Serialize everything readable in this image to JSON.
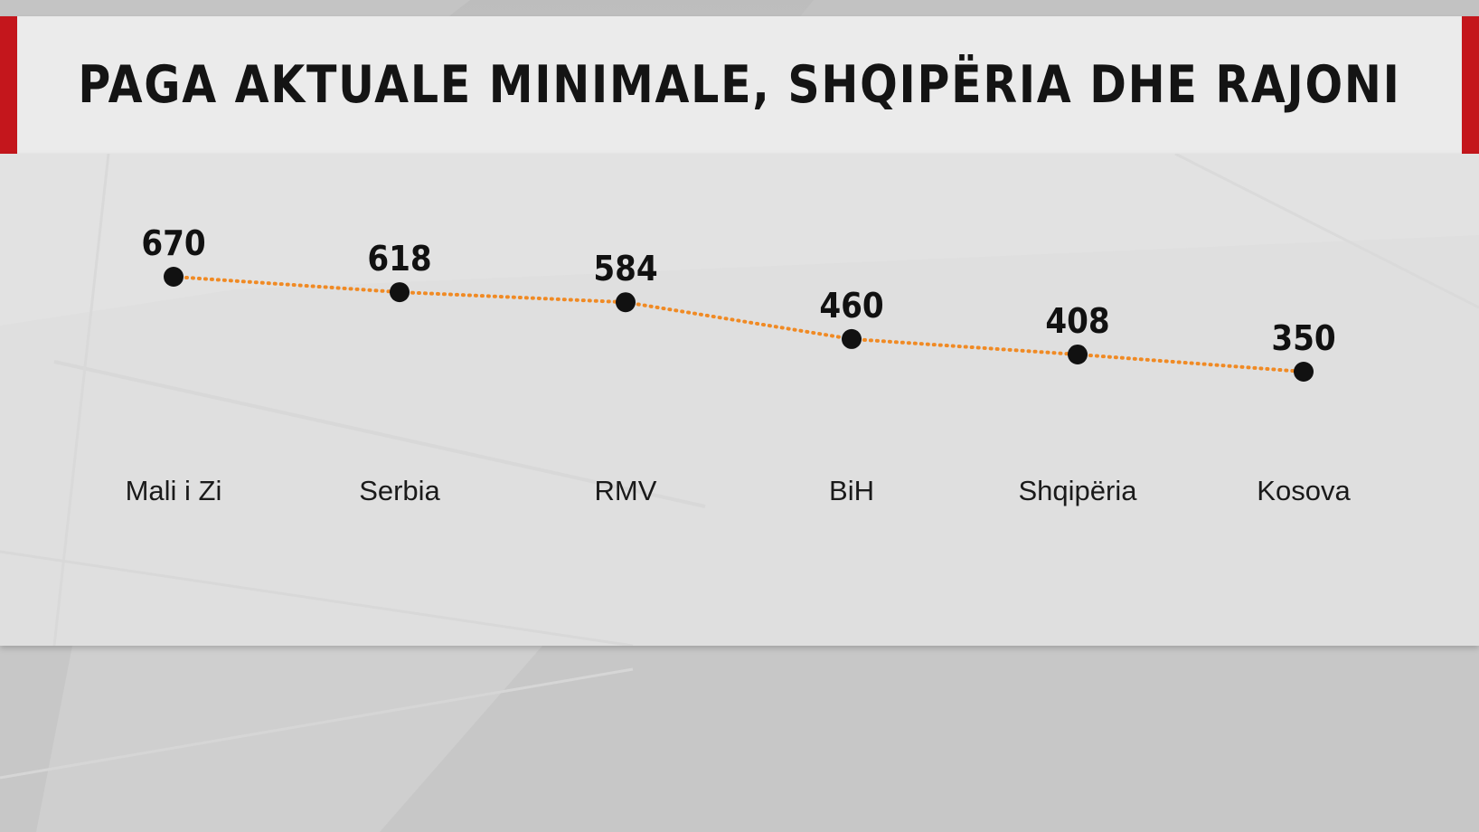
{
  "title": "PAGA AKTUALE MINIMALE, SHQIPËRIA DHE RAJONI",
  "colors": {
    "accent": "#c4161c",
    "line": "#f08a24",
    "marker": "#111111",
    "title_bg": "#ebebeb",
    "panel_bg": "#e2e2e2"
  },
  "chart_data": {
    "type": "line",
    "title": "PAGA AKTUALE MINIMALE, SHQIPËRIA DHE RAJONI",
    "categories": [
      "Mali i Zi",
      "Serbia",
      "RMV",
      "BiH",
      "Shqipëria",
      "Kosova"
    ],
    "series": [
      {
        "values": [
          670,
          618,
          584,
          460,
          408,
          350
        ],
        "line_style": "dotted",
        "color": "#f08a24"
      }
    ],
    "data_labels": [
      "670",
      "618",
      "584",
      "460",
      "408",
      "350"
    ],
    "xlabel": "",
    "ylabel": "",
    "grid": false,
    "legend": "none"
  }
}
